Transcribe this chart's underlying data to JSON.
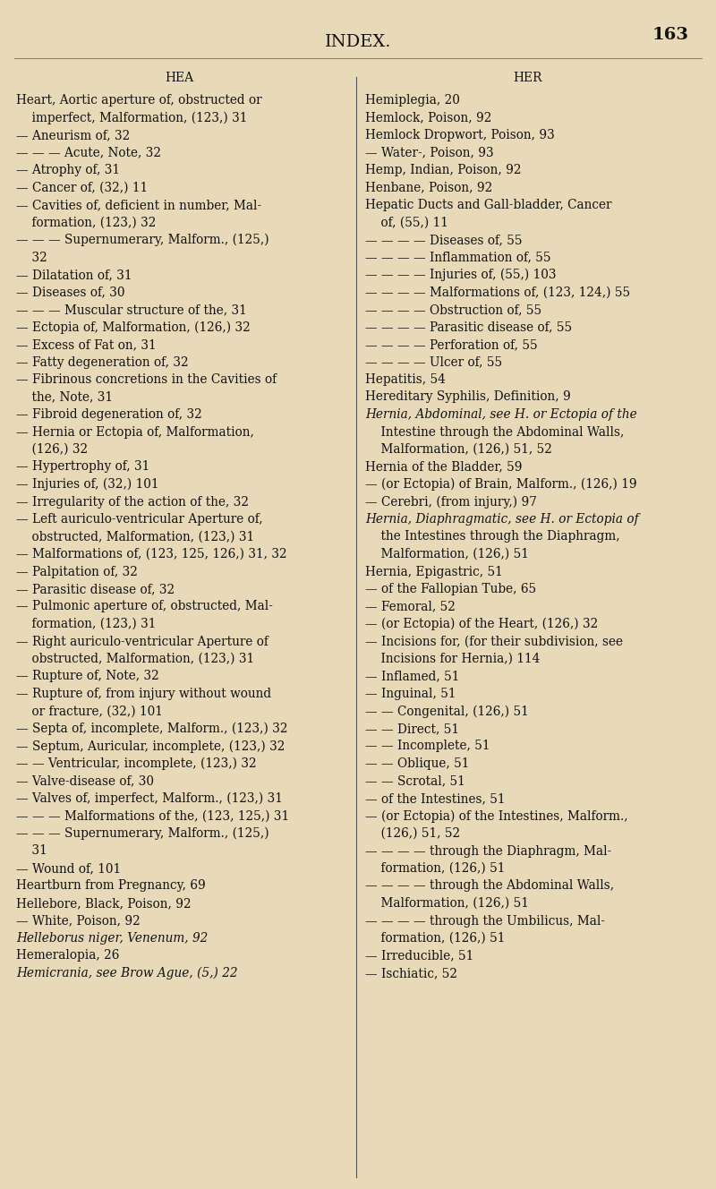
{
  "background_color": "#e8d9b8",
  "page_number": "163",
  "header_center": "INDEX.",
  "col1_header": "HEA",
  "col2_header": "HER",
  "font_size_header": 14,
  "font_size_colhead": 9.5,
  "font_size_body": 9.8,
  "col1_lines": [
    [
      "Heart, Aortic aperture of, obstructed or",
      false,
      false
    ],
    [
      "    imperfect, Malformation, (123,) 31",
      false,
      false
    ],
    [
      "— Aneurism of, 32",
      false,
      false
    ],
    [
      "— — — Acute, Note, 32",
      false,
      false
    ],
    [
      "— Atrophy of, 31",
      false,
      false
    ],
    [
      "— Cancer of, (32,) 11",
      false,
      false
    ],
    [
      "— Cavities of, deficient in number, Mal-",
      false,
      false
    ],
    [
      "    formation, (123,) 32",
      false,
      false
    ],
    [
      "— — — Supernumerary, Malform., (125,)",
      false,
      false
    ],
    [
      "    32",
      false,
      false
    ],
    [
      "— Dilatation of, 31",
      false,
      false
    ],
    [
      "— Diseases of, 30",
      false,
      false
    ],
    [
      "— — — Muscular structure of the, 31",
      false,
      false
    ],
    [
      "— Ectopia of, Malformation, (126,) 32",
      false,
      false
    ],
    [
      "— Excess of Fat on, 31",
      false,
      false
    ],
    [
      "— Fatty degeneration of, 32",
      false,
      false
    ],
    [
      "— Fibrinous concretions in the Cavities of",
      false,
      false
    ],
    [
      "    the, Note, 31",
      false,
      false
    ],
    [
      "— Fibroid degeneration of, 32",
      false,
      false
    ],
    [
      "— Hernia or Ectopia of, Malformation,",
      false,
      false
    ],
    [
      "    (126,) 32",
      false,
      false
    ],
    [
      "— Hypertrophy of, 31",
      false,
      false
    ],
    [
      "— Injuries of, (32,) 101",
      false,
      false
    ],
    [
      "— Irregularity of the action of the, 32",
      false,
      false
    ],
    [
      "— Left auriculo-ventricular Aperture of,",
      false,
      false
    ],
    [
      "    obstructed, Malformation, (123,) 31",
      false,
      false
    ],
    [
      "— Malformations of, (123, 125, 126,) 31, 32",
      false,
      false
    ],
    [
      "— Palpitation of, 32",
      false,
      false
    ],
    [
      "— Parasitic disease of, 32",
      false,
      false
    ],
    [
      "— Pulmonic aperture of, obstructed, Mal-",
      false,
      false
    ],
    [
      "    formation, (123,) 31",
      false,
      false
    ],
    [
      "— Right auriculo-ventricular Aperture of",
      false,
      false
    ],
    [
      "    obstructed, Malformation, (123,) 31",
      false,
      false
    ],
    [
      "— Rupture of, Note, 32",
      false,
      false
    ],
    [
      "— Rupture of, from injury without wound",
      false,
      false
    ],
    [
      "    or fracture, (32,) 101",
      false,
      false
    ],
    [
      "— Septa of, incomplete, Malform., (123,) 32",
      false,
      false
    ],
    [
      "— Septum, Auricular, incomplete, (123,) 32",
      false,
      false
    ],
    [
      "— — Ventricular, incomplete, (123,) 32",
      false,
      false
    ],
    [
      "— Valve-disease of, 30",
      false,
      false
    ],
    [
      "— Valves of, imperfect, Malform., (123,) 31",
      false,
      false
    ],
    [
      "— — — Malformations of the, (123, 125,) 31",
      false,
      false
    ],
    [
      "— — — Supernumerary, Malform., (125,)",
      false,
      false
    ],
    [
      "    31",
      false,
      false
    ],
    [
      "— Wound of, 101",
      false,
      false
    ],
    [
      "Heartburn from Pregnancy, 69",
      false,
      false
    ],
    [
      "Hellebore, Black, Poison, 92",
      false,
      false
    ],
    [
      "— White, Poison, 92",
      false,
      false
    ],
    [
      "Helleborus niger, Venenum, 92",
      false,
      true
    ],
    [
      "Hemeralopia, 26",
      false,
      false
    ],
    [
      "Hemicrania, see Brow Ague, (5,) 22",
      false,
      true
    ]
  ],
  "col2_lines": [
    [
      "Hemiplegia, 20",
      false,
      false
    ],
    [
      "Hemlock, Poison, 92",
      false,
      false
    ],
    [
      "Hemlock Dropwort, Poison, 93",
      false,
      false
    ],
    [
      "— Water-, Poison, 93",
      false,
      false
    ],
    [
      "Hemp, Indian, Poison, 92",
      false,
      false
    ],
    [
      "Henbane, Poison, 92",
      false,
      false
    ],
    [
      "Hepatic Ducts and Gall-bladder, Cancer",
      false,
      false
    ],
    [
      "    of, (55,) 11",
      false,
      false
    ],
    [
      "— — — — Diseases of, 55",
      false,
      false
    ],
    [
      "— — — — Inflammation of, 55",
      false,
      false
    ],
    [
      "— — — — Injuries of, (55,) 103",
      false,
      false
    ],
    [
      "— — — — Malformations of, (123, 124,) 55",
      false,
      false
    ],
    [
      "— — — — Obstruction of, 55",
      false,
      false
    ],
    [
      "— — — — Parasitic disease of, 55",
      false,
      false
    ],
    [
      "— — — — Perforation of, 55",
      false,
      false
    ],
    [
      "— — — — Ulcer of, 55",
      false,
      false
    ],
    [
      "Hepatitis, 54",
      false,
      false
    ],
    [
      "Hereditary Syphilis, Definition, 9",
      false,
      false
    ],
    [
      "Hernia, Abdominal, see H. or Ectopia of the",
      false,
      true
    ],
    [
      "    Intestine through the Abdominal Walls,",
      false,
      false
    ],
    [
      "    Malformation, (126,) 51, 52",
      false,
      false
    ],
    [
      "Hernia of the Bladder, 59",
      false,
      false
    ],
    [
      "— (or Ectopia) of Brain, Malform., (126,) 19",
      false,
      false
    ],
    [
      "— Cerebri, (from injury,) 97",
      false,
      false
    ],
    [
      "Hernia, Diaphragmatic, see H. or Ectopia of",
      false,
      true
    ],
    [
      "    the Intestines through the Diaphragm,",
      false,
      false
    ],
    [
      "    Malformation, (126,) 51",
      false,
      false
    ],
    [
      "Hernia, Epigastric, 51",
      false,
      false
    ],
    [
      "— of the Fallopian Tube, 65",
      false,
      false
    ],
    [
      "— Femoral, 52",
      false,
      false
    ],
    [
      "— (or Ectopia) of the Heart, (126,) 32",
      false,
      false
    ],
    [
      "— Incisions for, (for their subdivision, see",
      false,
      false
    ],
    [
      "    Incisions for Hernia,) 114",
      false,
      false
    ],
    [
      "— Inflamed, 51",
      false,
      false
    ],
    [
      "— Inguinal, 51",
      false,
      false
    ],
    [
      "— — Congenital, (126,) 51",
      false,
      false
    ],
    [
      "— — Direct, 51",
      false,
      false
    ],
    [
      "— — Incomplete, 51",
      false,
      false
    ],
    [
      "— — Oblique, 51",
      false,
      false
    ],
    [
      "— — Scrotal, 51",
      false,
      false
    ],
    [
      "— of the Intestines, 51",
      false,
      false
    ],
    [
      "— (or Ectopia) of the Intestines, Malform.,",
      false,
      false
    ],
    [
      "    (126,) 51, 52",
      false,
      false
    ],
    [
      "— — — — through the Diaphragm, Mal-",
      false,
      false
    ],
    [
      "    formation, (126,) 51",
      false,
      false
    ],
    [
      "— — — — through the Abdominal Walls,",
      false,
      false
    ],
    [
      "    Malformation, (126,) 51",
      false,
      false
    ],
    [
      "— — — — through the Umbilicus, Mal-",
      false,
      false
    ],
    [
      "    formation, (126,) 51",
      false,
      false
    ],
    [
      "— Irreducible, 51",
      false,
      false
    ],
    [
      "— Ischiatic, 52",
      false,
      false
    ]
  ]
}
